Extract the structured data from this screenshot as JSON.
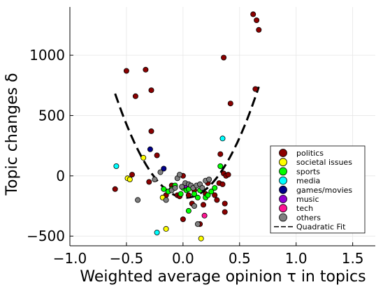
{
  "chart_data": {
    "type": "scatter",
    "xlabel": "Weighted average opinion τ in topics",
    "ylabel": "Topic changes δ",
    "xlim": [
      -1.0,
      1.7
    ],
    "ylim": [
      -580,
      1400
    ],
    "xticks": [
      -1.0,
      -0.5,
      0.0,
      0.5,
      1.0,
      1.5
    ],
    "xtick_labels": [
      "−1.0",
      "−0.5",
      "0.0",
      "0.5",
      "1.0",
      "1.5"
    ],
    "yticks": [
      -500,
      0,
      500,
      1000
    ],
    "ytick_labels": [
      "−500",
      "0",
      "500",
      "1000"
    ],
    "grid": true,
    "legend_position": "bottom-right",
    "series": [
      {
        "name": "politics",
        "color": "#8b0000",
        "points": [
          [
            -0.6,
            -110
          ],
          [
            -0.5,
            870
          ],
          [
            -0.45,
            10
          ],
          [
            -0.42,
            660
          ],
          [
            -0.33,
            880
          ],
          [
            -0.28,
            710
          ],
          [
            -0.3,
            -50
          ],
          [
            -0.28,
            370
          ],
          [
            -0.23,
            170
          ],
          [
            -0.15,
            -160
          ],
          [
            -0.1,
            -80
          ],
          [
            -0.05,
            -160
          ],
          [
            -0.03,
            -170
          ],
          [
            0.0,
            -360
          ],
          [
            0.0,
            0
          ],
          [
            0.05,
            -160
          ],
          [
            0.08,
            -230
          ],
          [
            0.1,
            -120
          ],
          [
            0.15,
            -400
          ],
          [
            0.18,
            -240
          ],
          [
            0.2,
            -150
          ],
          [
            0.22,
            -60
          ],
          [
            0.28,
            -160
          ],
          [
            0.3,
            -200
          ],
          [
            0.32,
            -60
          ],
          [
            0.33,
            180
          ],
          [
            0.35,
            -70
          ],
          [
            0.36,
            980
          ],
          [
            0.36,
            20
          ],
          [
            0.37,
            -230
          ],
          [
            0.37,
            -300
          ],
          [
            0.38,
            0
          ],
          [
            0.4,
            10
          ],
          [
            0.42,
            600
          ],
          [
            0.62,
            1340
          ],
          [
            0.64,
            720
          ],
          [
            0.65,
            1290
          ],
          [
            0.67,
            1210
          ]
        ]
      },
      {
        "name": "societal issues",
        "color": "#ffff00",
        "points": [
          [
            -0.49,
            -20
          ],
          [
            -0.47,
            -30
          ],
          [
            -0.35,
            150
          ],
          [
            -0.18,
            -180
          ],
          [
            -0.15,
            -440
          ],
          [
            0.16,
            -520
          ]
        ]
      },
      {
        "name": "sports",
        "color": "#00ff00",
        "points": [
          [
            -0.17,
            -110
          ],
          [
            -0.13,
            -130
          ],
          [
            -0.1,
            -110
          ],
          [
            -0.07,
            -80
          ],
          [
            -0.02,
            -150
          ],
          [
            0.0,
            -100
          ],
          [
            0.03,
            -120
          ],
          [
            0.05,
            -110
          ],
          [
            0.05,
            -290
          ],
          [
            0.1,
            -150
          ],
          [
            0.13,
            -180
          ],
          [
            0.15,
            -120
          ],
          [
            0.2,
            -180
          ],
          [
            0.22,
            -160
          ],
          [
            0.25,
            -130
          ],
          [
            0.28,
            -100
          ],
          [
            0.33,
            80
          ]
        ]
      },
      {
        "name": "media",
        "color": "#00ffff",
        "points": [
          [
            -0.59,
            80
          ],
          [
            -0.23,
            -470
          ],
          [
            0.35,
            310
          ]
        ]
      },
      {
        "name": "games/movies",
        "color": "#00008b",
        "points": [
          [
            -0.29,
            220
          ],
          [
            -0.17,
            60
          ]
        ]
      },
      {
        "name": "music",
        "color": "#9400d3",
        "points": [
          [
            0.02,
            -80
          ]
        ]
      },
      {
        "name": "tech",
        "color": "#ff1493",
        "points": [
          [
            0.19,
            -330
          ]
        ]
      },
      {
        "name": "others",
        "color": "#808080",
        "points": [
          [
            -0.4,
            -200
          ],
          [
            -0.25,
            -30
          ],
          [
            -0.2,
            30
          ],
          [
            -0.15,
            -200
          ],
          [
            -0.1,
            -120
          ],
          [
            -0.07,
            -100
          ],
          [
            -0.05,
            -20
          ],
          [
            -0.03,
            10
          ],
          [
            -0.01,
            -90
          ],
          [
            0.02,
            -60
          ],
          [
            0.05,
            -70
          ],
          [
            0.07,
            -80
          ],
          [
            0.09,
            -100
          ],
          [
            0.1,
            -250
          ],
          [
            0.12,
            -80
          ],
          [
            0.13,
            -400
          ],
          [
            0.15,
            -70
          ],
          [
            0.17,
            -100
          ],
          [
            0.2,
            -40
          ],
          [
            0.23,
            -30
          ]
        ]
      }
    ],
    "fit": {
      "name": "Quadratic Fit",
      "color": "#000000",
      "style": "dashed",
      "coefficients": {
        "a": 2210,
        "b": -110,
        "c": -180
      },
      "x_range": [
        -0.6,
        0.67
      ]
    }
  }
}
